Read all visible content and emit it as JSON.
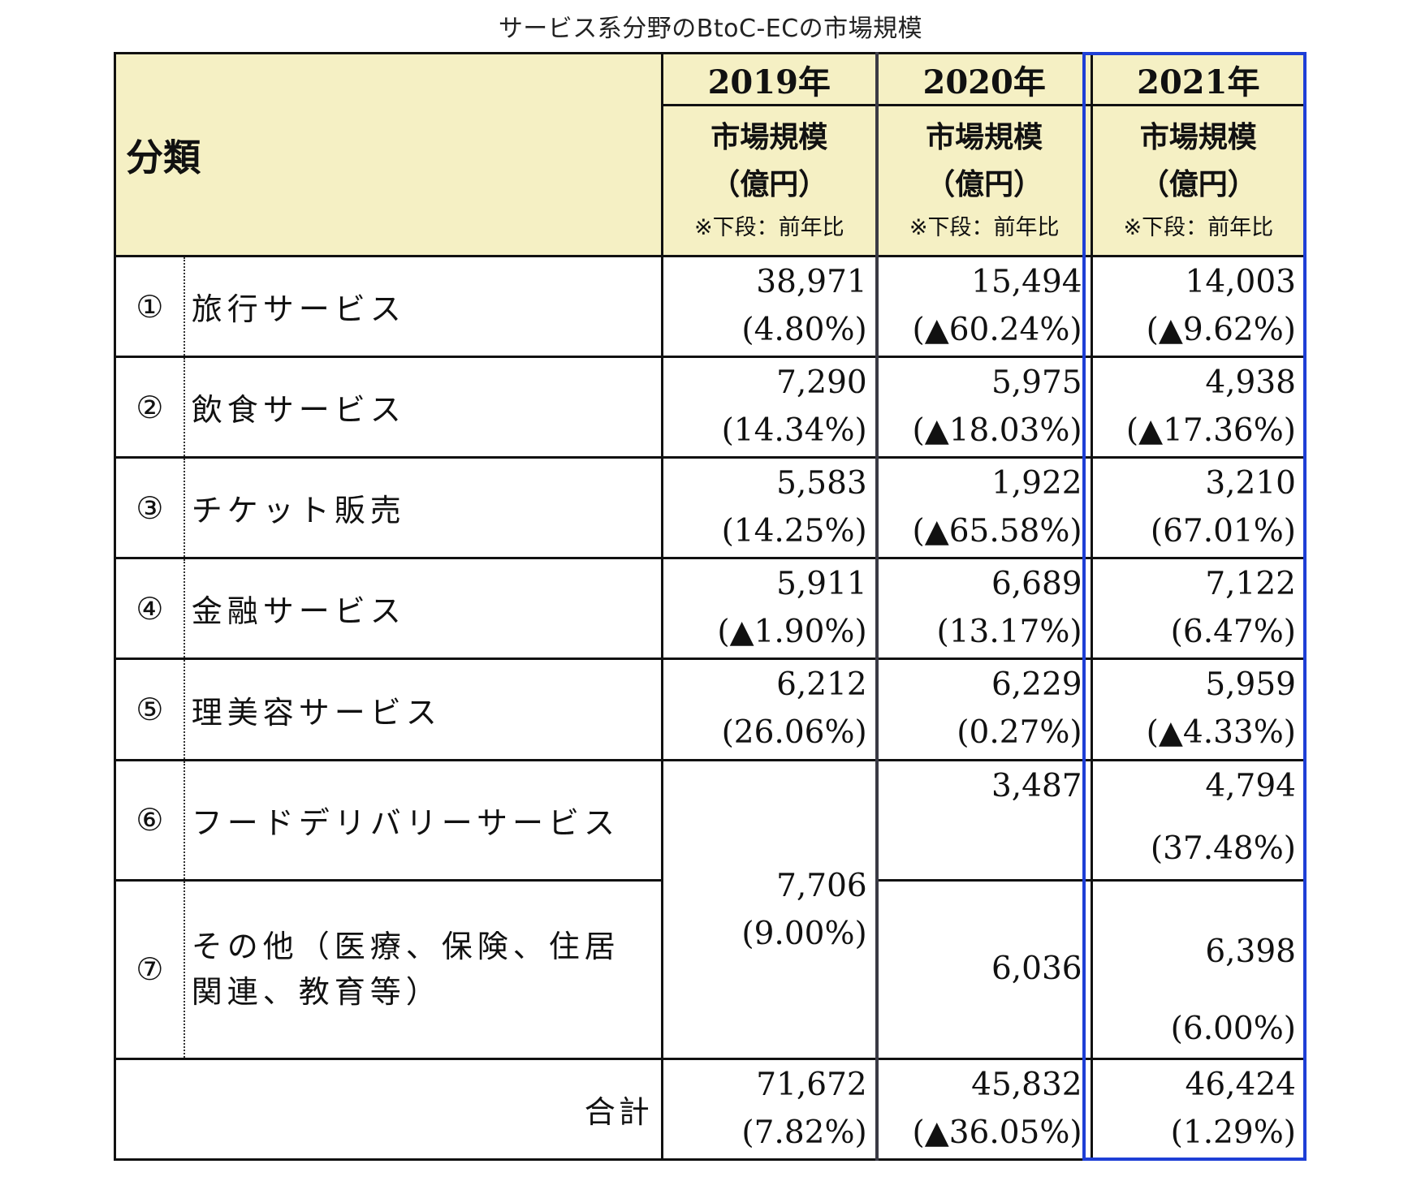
{
  "title": "サービス系分野のBtoC-ECの市場規模",
  "header": {
    "category_label": "分類",
    "years": [
      "2019年",
      "2020年",
      "2021年"
    ],
    "unit_line1": "市場規模",
    "unit_line2": "（億円）",
    "unit_line3": "※下段：前年比"
  },
  "rows": [
    {
      "index": "①",
      "name": "旅行サービス",
      "v2019": "38,971",
      "p2019": "(4.80%)",
      "v2020": "15,494",
      "p2020": "(▲60.24%)",
      "v2021": "14,003",
      "p2021": "(▲9.62%)"
    },
    {
      "index": "②",
      "name": "飲食サービス",
      "v2019": "7,290",
      "p2019": "(14.34%)",
      "v2020": "5,975",
      "p2020": "(▲18.03%)",
      "v2021": "4,938",
      "p2021": "(▲17.36%)"
    },
    {
      "index": "③",
      "name": "チケット販売",
      "v2019": "5,583",
      "p2019": "(14.25%)",
      "v2020": "1,922",
      "p2020": "(▲65.58%)",
      "v2021": "3,210",
      "p2021": "(67.01%)"
    },
    {
      "index": "④",
      "name": "金融サービス",
      "v2019": "5,911",
      "p2019": "(▲1.90%)",
      "v2020": "6,689",
      "p2020": "(13.17%)",
      "v2021": "7,122",
      "p2021": "(6.47%)"
    },
    {
      "index": "⑤",
      "name": "理美容サービス",
      "v2019": "6,212",
      "p2019": "(26.06%)",
      "v2020": "6,229",
      "p2020": "(0.27%)",
      "v2021": "5,959",
      "p2021": "(▲4.33%)"
    },
    {
      "index": "⑥",
      "name": "フードデリバリーサービス",
      "v2020": "3,487",
      "v2021": "4,794",
      "p2021": "(37.48%)"
    },
    {
      "index": "⑦",
      "name_line1": "その他（医療、保険、住居",
      "name_line2": "関連、教育等）",
      "v2020": "6,036",
      "v2021": "6,398",
      "p2021": "(6.00%)"
    }
  ],
  "merged_2019": {
    "value": "7,706",
    "pct": "(9.00%)"
  },
  "total": {
    "label": "合計",
    "v2019": "71,672",
    "p2019": "(7.82%)",
    "v2020": "45,832",
    "p2020": "(▲36.05%)",
    "v2021": "46,424",
    "p2021": "(1.29%)"
  },
  "colors": {
    "header_bg": "#f5f0c4",
    "highlight_border": "#1e3fd6"
  }
}
